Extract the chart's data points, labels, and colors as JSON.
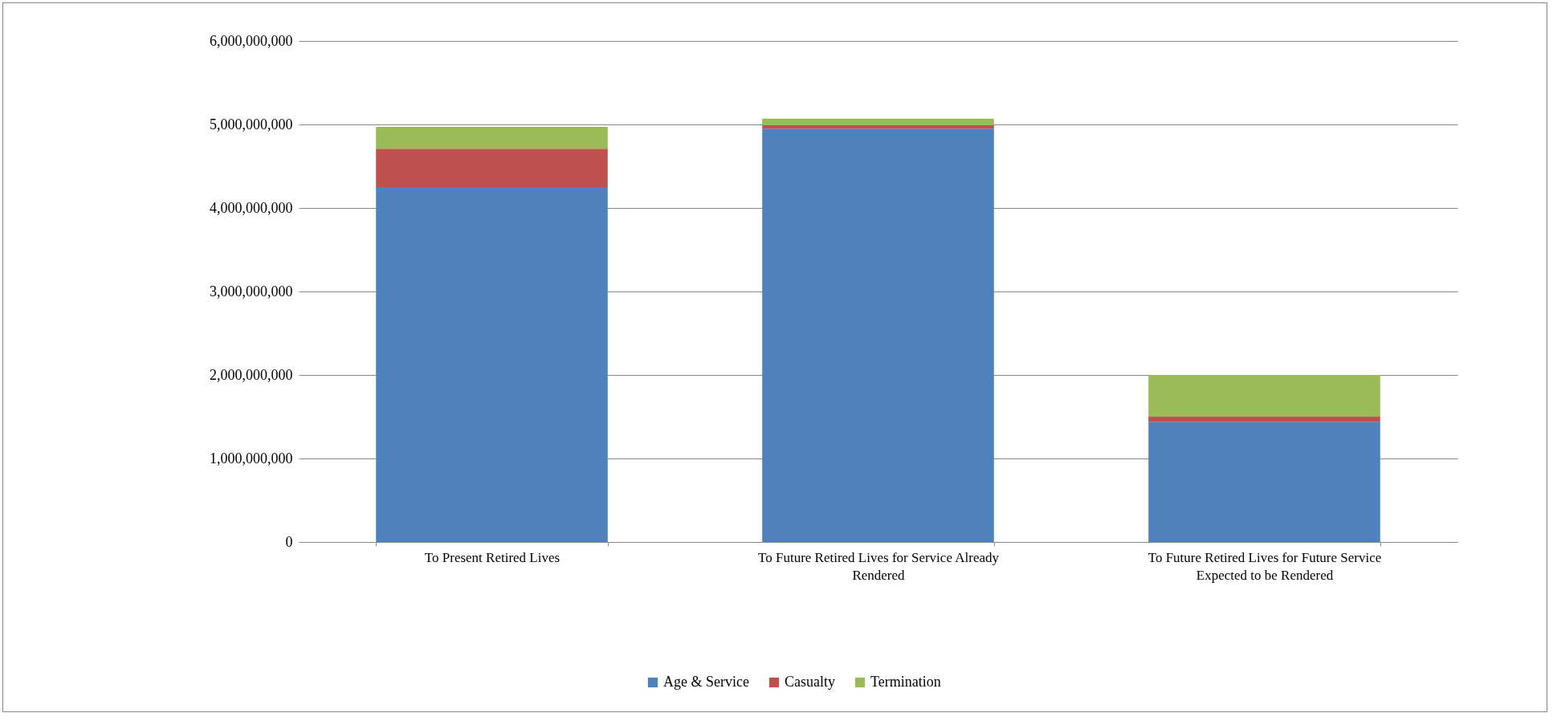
{
  "chart_data": {
    "type": "bar",
    "stacked": true,
    "categories": [
      "To Present Retired Lives",
      "To Future Retired Lives for Service Already Rendered",
      "To Future Retired Lives for Future Service Expected to be Rendered"
    ],
    "series": [
      {
        "name": "Age & Service",
        "color": "#4f81bd",
        "values": [
          4250000000,
          4950000000,
          1440000000
        ]
      },
      {
        "name": "Casualty",
        "color": "#c0504d",
        "values": [
          460000000,
          40000000,
          60000000
        ]
      },
      {
        "name": "Termination",
        "color": "#9bbb59",
        "values": [
          260000000,
          80000000,
          500000000
        ]
      }
    ],
    "ylim": [
      0,
      6000000000
    ],
    "yticks": [
      0,
      {
        "value": 1000000000,
        "label": "1,000,000,000"
      },
      {
        "value": 2000000000,
        "label": "2,000,000,000"
      },
      {
        "value": 3000000000,
        "label": "3,000,000,000"
      },
      {
        "value": 4000000000,
        "label": "4,000,000,000"
      },
      {
        "value": 5000000000,
        "label": "5,000,000,000"
      },
      {
        "value": 6000000000,
        "label": "6,000,000,000"
      }
    ],
    "grid": "y",
    "legend": "bottom"
  }
}
